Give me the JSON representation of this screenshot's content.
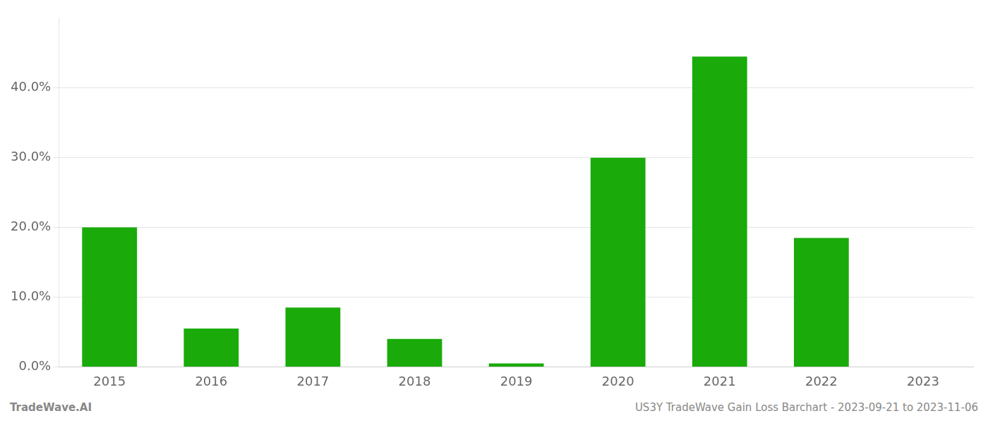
{
  "chart_data": {
    "type": "bar",
    "categories": [
      "2015",
      "2016",
      "2017",
      "2018",
      "2019",
      "2020",
      "2021",
      "2022",
      "2023"
    ],
    "values": [
      0.2,
      0.055,
      0.085,
      0.04,
      0.005,
      0.3,
      0.445,
      0.185,
      0.0
    ],
    "color": "#1aab0a",
    "ylim": [
      0,
      0.5
    ],
    "yticks": [
      {
        "value": 0.0,
        "label": "0.0%"
      },
      {
        "value": 0.1,
        "label": "10.0%"
      },
      {
        "value": 0.2,
        "label": "20.0%"
      },
      {
        "value": 0.3,
        "label": "30.0%"
      },
      {
        "value": 0.4,
        "label": "40.0%"
      }
    ],
    "grid": true,
    "annotations": [
      "TradeWave.AI",
      "US3Y TradeWave Gain Loss Barchart - 2023-09-21 to 2023-11-06"
    ]
  }
}
